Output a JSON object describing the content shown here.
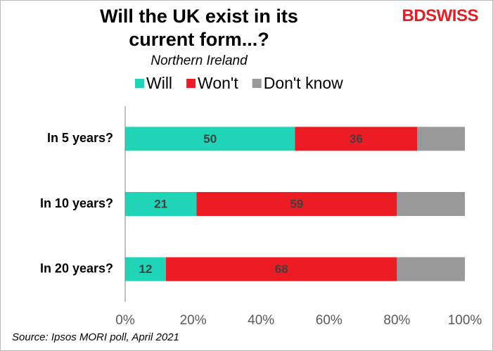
{
  "chart_data": {
    "type": "stacked-bar-horizontal",
    "title": "Will the UK exist in its current form...?",
    "subtitle": "Northern Ireland",
    "logo": "BDSWISS",
    "source": "Source: Ipsos MORI poll, April 2021",
    "categories": [
      "In 5 years?",
      "In 10 years?",
      "In 20 years?"
    ],
    "series": [
      {
        "name": "Will",
        "color": "#1fd4b7",
        "values": [
          50,
          21,
          12
        ],
        "data_labels": true
      },
      {
        "name": "Won't",
        "color": "#ed1c24",
        "values": [
          36,
          59,
          68
        ],
        "data_labels": true
      },
      {
        "name": "Don't know",
        "color": "#999999",
        "values": [
          14,
          20,
          20
        ],
        "data_labels": false
      }
    ],
    "xlim": [
      0,
      100
    ],
    "xticks": [
      {
        "value": 0,
        "label": "0%"
      },
      {
        "value": 20,
        "label": "20%"
      },
      {
        "value": 40,
        "label": "40%"
      },
      {
        "value": 60,
        "label": "60%"
      },
      {
        "value": 80,
        "label": "80%"
      },
      {
        "value": 100,
        "label": "100%"
      }
    ],
    "grid": false,
    "legend": "top"
  }
}
